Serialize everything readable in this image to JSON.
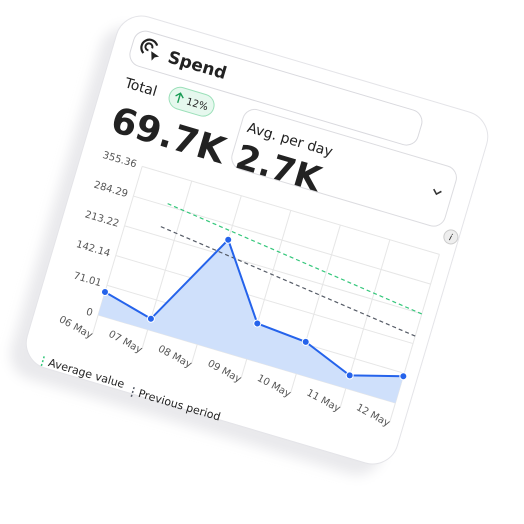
{
  "card": {
    "title": "Spend",
    "total_label": "Total",
    "total": "69.7K",
    "change": "12%",
    "avg_label": "Avg. per day",
    "avg": "2.7K"
  },
  "chart_data": {
    "type": "line",
    "categories": [
      "06 May",
      "07 May",
      "08 May",
      "09 May",
      "10 May",
      "11 May",
      "12 May"
    ],
    "series": [
      {
        "name": "Spend",
        "color": "#2563eb",
        "values": [
          55,
          26,
          250,
          85,
          76,
          31,
          64
        ]
      }
    ],
    "area_color": "#cfe0fb",
    "reference_lines": [
      {
        "name": "Average value",
        "color": "#34c77b",
        "values": [
          290,
          213
        ]
      },
      {
        "name": "Previous period",
        "color": "#555b66",
        "values": [
          235,
          160
        ]
      }
    ],
    "ylim": [
      0,
      355.36
    ],
    "yticks": [
      0,
      71.01,
      142.14,
      213.22,
      284.29,
      355.36
    ],
    "grid": true
  }
}
